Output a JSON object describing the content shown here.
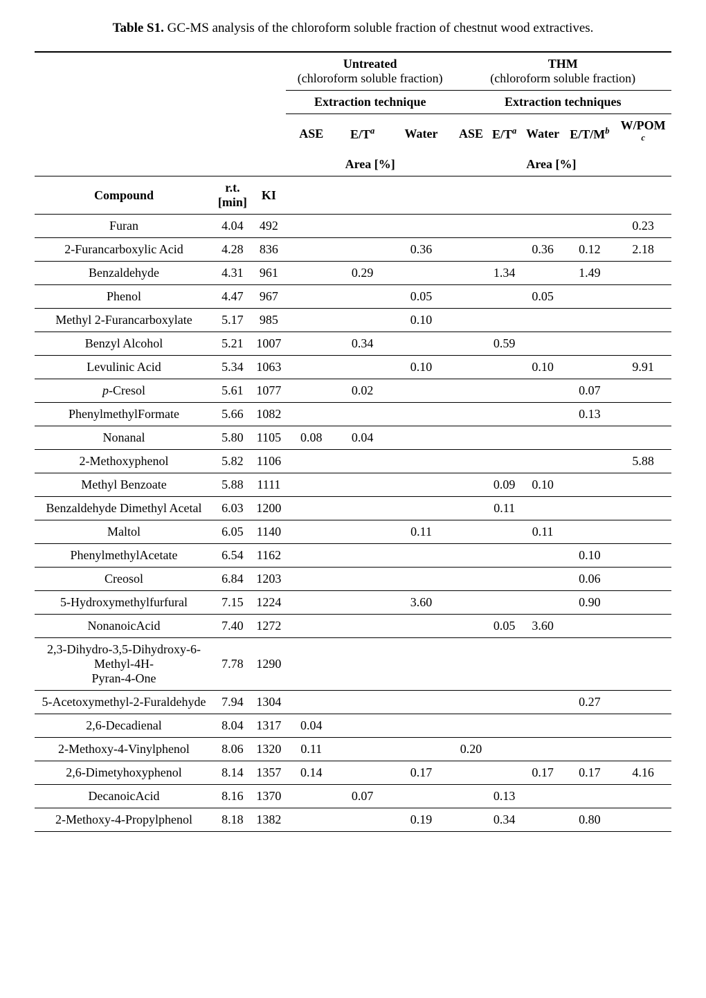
{
  "caption": {
    "label": "Table S1.",
    "text": " GC-MS analysis of the chloroform soluble fraction of chestnut wood extractives."
  },
  "hdr": {
    "untreated": "Untreated",
    "untreated_sub": "(chloroform soluble fraction)",
    "thm": "THM",
    "thm_sub": "(chloroform soluble fraction)",
    "ext1": "Extraction technique",
    "ext2": "Extraction techniques",
    "ase": "ASE",
    "et_html": "E/T<span class='sup italic'>a</span>",
    "water": "Water",
    "etm_html": "E/T/M<span class='sup italic'>b</span>",
    "wpom_html": "W/POM<br><span class='sup italic'>c</span>",
    "compound": "Compound",
    "rt": "r.t.",
    "rt_unit": "[min]",
    "ki": "KI",
    "area": "Area [%]"
  },
  "rows": [
    {
      "c": "Furan",
      "rt": "4.04",
      "ki": "492",
      "wpom": "0.23"
    },
    {
      "c": "2-Furancarboxylic Acid",
      "rt": "4.28",
      "ki": "836",
      "w1": "0.36",
      "w2": "0.36",
      "etm": "0.12",
      "wpom": "2.18"
    },
    {
      "c": "Benzaldehyde",
      "rt": "4.31",
      "ki": "961",
      "et1": "0.29",
      "et2": "1.34",
      "etm": "1.49"
    },
    {
      "c": "Phenol",
      "rt": "4.47",
      "ki": "967",
      "w1": "0.05",
      "w2": "0.05"
    },
    {
      "c": "Methyl 2-Furancarboxylate",
      "rt": "5.17",
      "ki": "985",
      "w1": "0.10"
    },
    {
      "c": "Benzyl Alcohol",
      "rt": "5.21",
      "ki": "1007",
      "et1": "0.34",
      "et2": "0.59"
    },
    {
      "c": "Levulinic Acid",
      "rt": "5.34",
      "ki": "1063",
      "w1": "0.10",
      "w2": "0.10",
      "wpom": "9.91"
    },
    {
      "c_html": "<span class='italic'>p</span>-Cresol",
      "rt": "5.61",
      "ki": "1077",
      "et1": "0.02",
      "etm": "0.07"
    },
    {
      "c": "PhenylmethylFormate",
      "rt": "5.66",
      "ki": "1082",
      "etm": "0.13"
    },
    {
      "c": "Nonanal",
      "rt": "5.80",
      "ki": "1105",
      "ase1": "0.08",
      "et1": "0.04"
    },
    {
      "c": "2-Methoxyphenol",
      "rt": "5.82",
      "ki": "1106",
      "wpom": "5.88"
    },
    {
      "c": "Methyl Benzoate",
      "rt": "5.88",
      "ki": "1111",
      "et2": "0.09",
      "w2": "0.10"
    },
    {
      "c": "Benzaldehyde Dimethyl Acetal",
      "rt": "6.03",
      "ki": "1200",
      "et2": "0.11"
    },
    {
      "c": "Maltol",
      "rt": "6.05",
      "ki": "1140",
      "w1": "0.11",
      "w2": "0.11"
    },
    {
      "c": "PhenylmethylAcetate",
      "rt": "6.54",
      "ki": "1162",
      "etm": "0.10"
    },
    {
      "c": "Creosol",
      "rt": "6.84",
      "ki": "1203",
      "etm": "0.06"
    },
    {
      "c": "5-Hydroxymethylfurfural",
      "rt": "7.15",
      "ki": "1224",
      "w1": "3.60",
      "etm": "0.90"
    },
    {
      "c": "NonanoicAcid",
      "rt": "7.40",
      "ki": "1272",
      "et2": "0.05",
      "w2": "3.60"
    },
    {
      "c_html": "2,3-Dihydro-3,5-Dihydroxy-6-<br>Methyl-4H-<br>Pyran-4-One",
      "rt": "7.78",
      "ki": "1290"
    },
    {
      "c": "5-Acetoxymethyl-2-Furaldehyde",
      "rt": "7.94",
      "ki": "1304",
      "etm": "0.27"
    },
    {
      "c": "2,6-Decadienal",
      "rt": "8.04",
      "ki": "1317",
      "ase1": "0.04"
    },
    {
      "c": "2-Methoxy-4-Vinylphenol",
      "rt": "8.06",
      "ki": "1320",
      "ase1": "0.11",
      "ase2": "0.20"
    },
    {
      "c": "2,6-Dimetyhoxyphenol",
      "rt": "8.14",
      "ki": "1357",
      "ase1": "0.14",
      "w1": "0.17",
      "w2": "0.17",
      "etm": "0.17",
      "wpom": "4.16"
    },
    {
      "c": "DecanoicAcid",
      "rt": "8.16",
      "ki": "1370",
      "et1": "0.07",
      "et2": "0.13"
    },
    {
      "c": "2-Methoxy-4-Propylphenol",
      "rt": "8.18",
      "ki": "1382",
      "w1": "0.19",
      "et2": "0.34",
      "etm": "0.80"
    }
  ]
}
